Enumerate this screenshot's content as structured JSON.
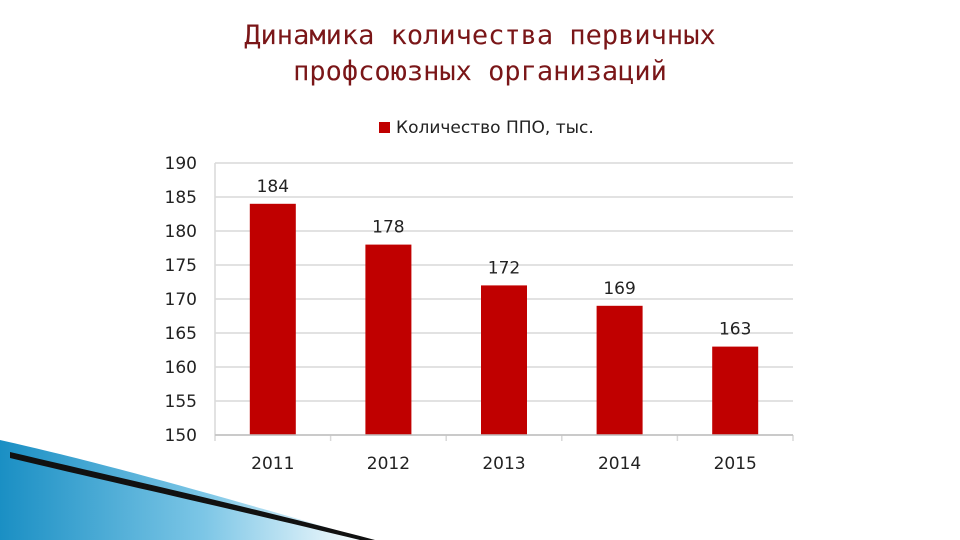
{
  "title_lines": [
    "Динамика количества первичных",
    "профсоюзных организаций"
  ],
  "colors": {
    "title": "#7a1618",
    "bar": "#c00000",
    "grid": "#d9d9d9",
    "decor_blue": "#1a8fc4"
  },
  "chart_data": {
    "type": "bar",
    "categories": [
      "2011",
      "2012",
      "2013",
      "2014",
      "2015"
    ],
    "series": [
      {
        "name": "Количество ППО, тыс.",
        "values": [
          184,
          178,
          172,
          169,
          163
        ]
      }
    ],
    "data_labels": [
      "184",
      "178",
      "172",
      "169",
      "163"
    ],
    "ylim": [
      150,
      190
    ],
    "yticks": [
      150,
      155,
      160,
      165,
      170,
      175,
      180,
      185,
      190
    ],
    "grid": true,
    "legend_position": "top-center"
  }
}
